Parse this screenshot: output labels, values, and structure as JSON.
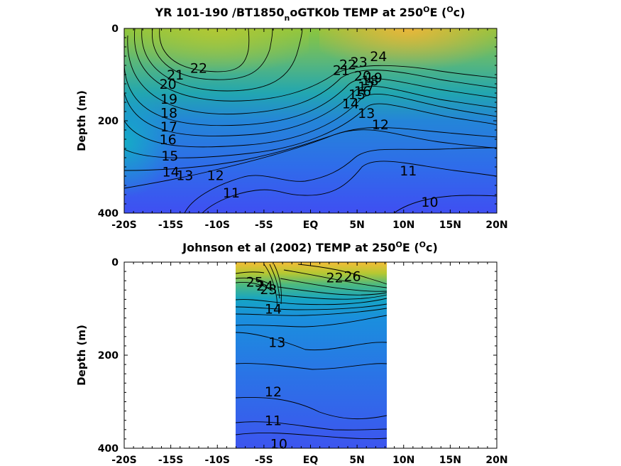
{
  "chart_data": [
    {
      "type": "heatmap",
      "title": "YR 101-190 /BT1850",
      "title_sub": "n",
      "title_rest": "oGTK0b TEMP at 250",
      "title_sup": "O",
      "title_end": "E (",
      "title_unit_sup": "O",
      "title_unit": "c)",
      "ylabel": "Depth (m)",
      "xlim": [
        -20,
        20
      ],
      "ylim": [
        0,
        400
      ],
      "x_ticks": [
        -20,
        -15,
        -10,
        -5,
        0,
        5,
        10,
        15,
        20
      ],
      "x_tick_labels": [
        "-20S",
        "-15S",
        "-10S",
        "-5S",
        "EQ",
        "5N",
        "10N",
        "15N",
        "20N"
      ],
      "y_ticks": [
        0,
        200,
        400
      ],
      "y_tick_labels": [
        "0",
        "200",
        "400"
      ],
      "data_extent": [
        -20,
        20
      ],
      "contour_labels": [
        {
          "text": "22",
          "x": -12.0,
          "y": 85
        },
        {
          "text": "21",
          "x": -14.5,
          "y": 100
        },
        {
          "text": "20",
          "x": -15.3,
          "y": 120
        },
        {
          "text": "19",
          "x": -15.2,
          "y": 152
        },
        {
          "text": "18",
          "x": -15.2,
          "y": 182
        },
        {
          "text": "17",
          "x": -15.2,
          "y": 212
        },
        {
          "text": "16",
          "x": -15.3,
          "y": 240
        },
        {
          "text": "15",
          "x": -15.1,
          "y": 275
        },
        {
          "text": "14",
          "x": -15.0,
          "y": 310
        },
        {
          "text": "13",
          "x": -13.5,
          "y": 318
        },
        {
          "text": "12",
          "x": -10.2,
          "y": 318
        },
        {
          "text": "11",
          "x": -8.5,
          "y": 355
        },
        {
          "text": "21",
          "x": 3.3,
          "y": 90
        },
        {
          "text": "22",
          "x": 4.0,
          "y": 78
        },
        {
          "text": "23",
          "x": 5.2,
          "y": 72
        },
        {
          "text": "24",
          "x": 7.3,
          "y": 60
        },
        {
          "text": "20",
          "x": 5.6,
          "y": 102
        },
        {
          "text": "19",
          "x": 6.8,
          "y": 106
        },
        {
          "text": "18",
          "x": 6.4,
          "y": 112
        },
        {
          "text": "17",
          "x": 6.0,
          "y": 125
        },
        {
          "text": "16",
          "x": 5.6,
          "y": 135
        },
        {
          "text": "15",
          "x": 5.0,
          "y": 142
        },
        {
          "text": "14",
          "x": 4.3,
          "y": 162
        },
        {
          "text": "13",
          "x": 6.0,
          "y": 183
        },
        {
          "text": "12",
          "x": 7.5,
          "y": 208
        },
        {
          "text": "11",
          "x": 10.5,
          "y": 308
        },
        {
          "text": "10",
          "x": 12.8,
          "y": 375
        }
      ]
    },
    {
      "type": "heatmap",
      "title": "Johnson et al (2002) TEMP at 250",
      "title_sup": "O",
      "title_end": "E (",
      "title_unit_sup": "O",
      "title_unit": "c)",
      "ylabel": "Depth (m)",
      "xlim": [
        -20,
        20
      ],
      "ylim": [
        0,
        400
      ],
      "x_ticks": [
        -20,
        -15,
        -10,
        -5,
        0,
        5,
        10,
        15,
        20
      ],
      "x_tick_labels": [
        "-20S",
        "-15S",
        "-10S",
        "-5S",
        "EQ",
        "5N",
        "10N",
        "15N",
        "20N"
      ],
      "y_ticks": [
        0,
        200,
        400
      ],
      "y_tick_labels": [
        "0",
        "200",
        "400"
      ],
      "data_extent": [
        -8,
        8.3
      ],
      "contour_labels": [
        {
          "text": "25",
          "x": -6.0,
          "y": 42
        },
        {
          "text": "24",
          "x": -4.9,
          "y": 50
        },
        {
          "text": "23",
          "x": -4.5,
          "y": 58
        },
        {
          "text": "22",
          "x": 2.6,
          "y": 33
        },
        {
          "text": "26",
          "x": 4.5,
          "y": 30
        },
        {
          "text": "14",
          "x": -4.0,
          "y": 100
        },
        {
          "text": "13",
          "x": -3.6,
          "y": 172
        },
        {
          "text": "12",
          "x": -4.0,
          "y": 278
        },
        {
          "text": "11",
          "x": -4.0,
          "y": 340
        },
        {
          "text": "10",
          "x": -3.4,
          "y": 390
        }
      ]
    }
  ]
}
